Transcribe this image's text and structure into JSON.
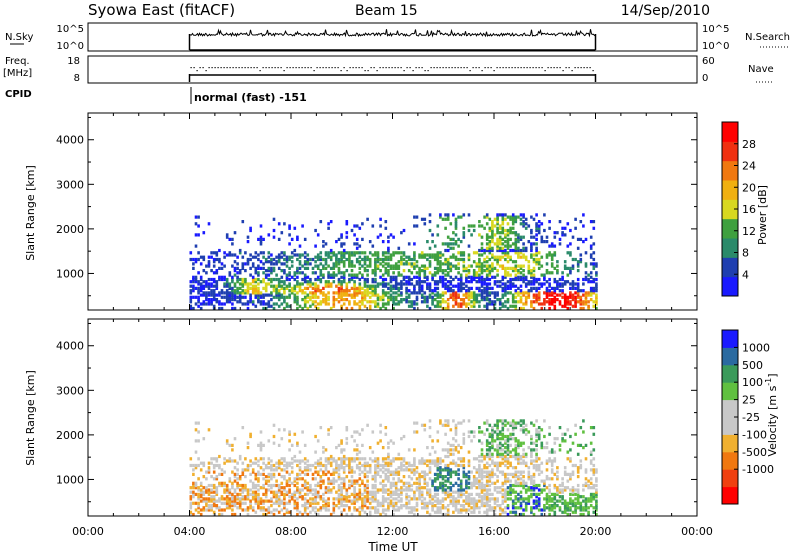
{
  "header": {
    "title": "Syowa East (fitACF)",
    "beam": "Beam 15",
    "date": "14/Sep/2010"
  },
  "panels": {
    "nsky": {
      "label": "N.Sky",
      "tick_labels": [
        "10^5",
        "10^0"
      ],
      "right_tick_labels": [
        "10^5",
        "10^0"
      ],
      "right_label": "N.Search"
    },
    "freq": {
      "label_line1": "Freq.",
      "label_line2": "[MHz]",
      "tick_labels": [
        "18",
        "8"
      ],
      "right_tick_labels": [
        "60",
        "0"
      ],
      "right_label": "Nave"
    },
    "cpid": {
      "label": "CPID",
      "mode_text": "normal (fast) -151"
    }
  },
  "colors": {
    "power": [
      "#1a1aff",
      "#1f3fb0",
      "#2a8a6a",
      "#3fa03f",
      "#d8d820",
      "#f0b010",
      "#f07810",
      "#f03010",
      "#ff0000"
    ],
    "velocity": [
      "#ff0000",
      "#f04010",
      "#f07810",
      "#f0b030",
      "#c8c8c8",
      "#c8c8c8",
      "#60c040",
      "#3a9a5a",
      "#2a6aa0",
      "#1a1aff"
    ]
  },
  "chart_data": [
    {
      "type": "heatmap",
      "name": "power",
      "ylabel": "Slant Range [km]",
      "yticks": [
        1000,
        2000,
        3000,
        4000
      ],
      "ylim": [
        180,
        4600
      ],
      "xlim": [
        0,
        24
      ],
      "data_time_range": [
        4,
        20
      ],
      "colorbar": {
        "label": "Power [dB]",
        "ticks": [
          4,
          8,
          12,
          16,
          20,
          24,
          28
        ],
        "range": [
          0,
          32
        ]
      }
    },
    {
      "type": "heatmap",
      "name": "velocity",
      "ylabel": "Slant Range [km]",
      "yticks": [
        1000,
        2000,
        3000,
        4000
      ],
      "ylim": [
        180,
        4600
      ],
      "xlim": [
        0,
        24
      ],
      "data_time_range": [
        4,
        20
      ],
      "xlabel": "Time UT",
      "xtick_labels": [
        "00:00",
        "04:00",
        "08:00",
        "12:00",
        "16:00",
        "20:00",
        "00:00"
      ],
      "xticks": [
        0,
        4,
        8,
        12,
        16,
        20,
        24
      ],
      "colorbar": {
        "label_main": "Velocity [m s",
        "label_exp": "-1",
        "label_end": "]",
        "ticks": [
          1000,
          500,
          100,
          25,
          -25,
          -100,
          -500,
          -1000
        ]
      }
    }
  ]
}
